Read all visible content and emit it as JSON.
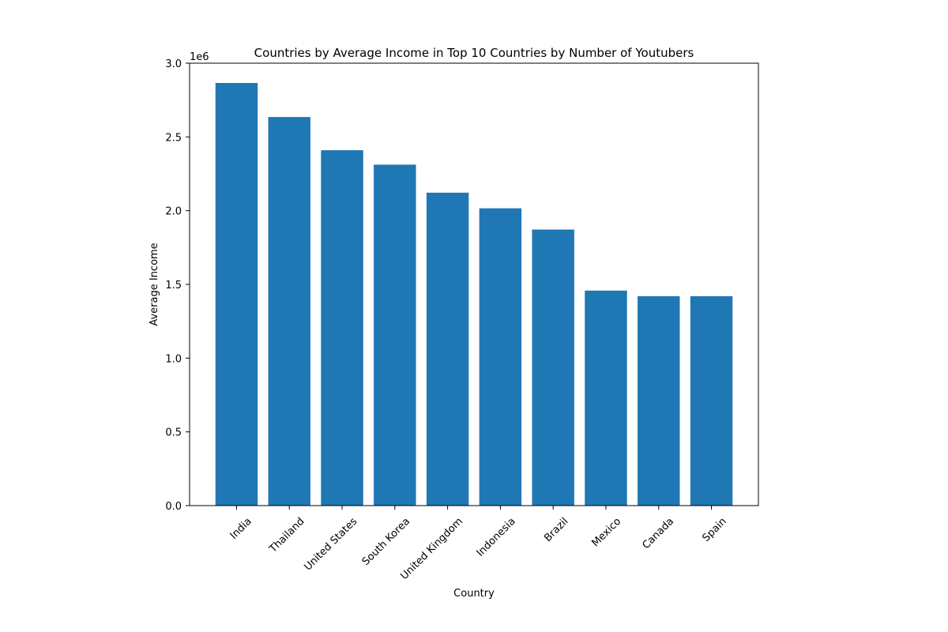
{
  "chart_data": {
    "type": "bar",
    "title": "Countries by Average Income in Top 10 Countries by Number of Youtubers",
    "xlabel": "Country",
    "ylabel": "Average Income",
    "y_offset_label": "1e6",
    "categories": [
      "India",
      "Thailand",
      "United States",
      "South Korea",
      "United Kingdom",
      "Indonesia",
      "Brazil",
      "Mexico",
      "Canada",
      "Spain"
    ],
    "values": [
      2866000,
      2635000,
      2410000,
      2312000,
      2122000,
      2016000,
      1872000,
      1458000,
      1420000,
      1420000
    ],
    "ylim": [
      0,
      3000000
    ],
    "yticks": [
      0,
      500000,
      1000000,
      1500000,
      2000000,
      2500000,
      3000000
    ],
    "ytick_labels": [
      "0.0",
      "0.5",
      "1.0",
      "1.5",
      "2.0",
      "2.5",
      "3.0"
    ],
    "bar_color": "#1f77b4",
    "grid": false,
    "legend": "none"
  }
}
